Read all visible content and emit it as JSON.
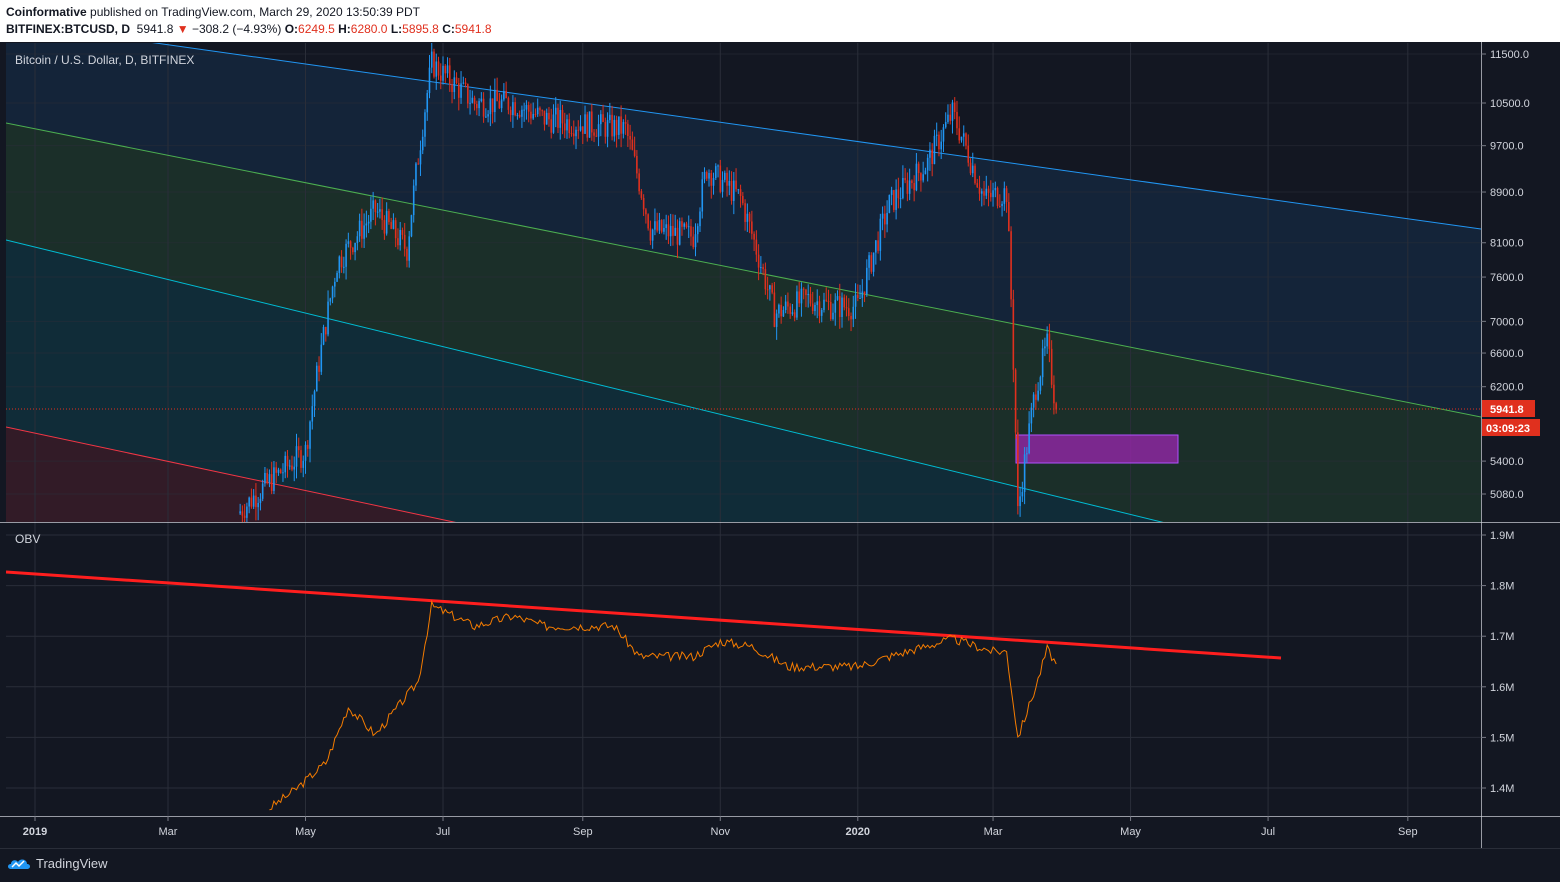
{
  "header": {
    "publisher": "Coinformative",
    "published_text": " published on TradingView.com, March 29, 2020 13:50:39 PDT",
    "symbol": "BITFINEX:BTCUSD, D",
    "last": "5941.8",
    "change_arrow": "▼",
    "change": "−308.2 (−4.93%)",
    "open_label": "O:",
    "open": "6249.5",
    "high_label": "H:",
    "high": "6280.0",
    "low_label": "L:",
    "low": "5895.8",
    "close_label": "C:",
    "close": "5941.8"
  },
  "main_pane": {
    "legend": "Bitcoin / U.S. Dollar, D, BITFINEX",
    "price_tag": "5941.8",
    "countdown_tag": "03:09:23",
    "price_tag_color": "#e0301e"
  },
  "obv_pane": {
    "legend": "OBV"
  },
  "footer": {
    "brand": "TradingView"
  },
  "colors": {
    "background": "#131722",
    "up_candle": "#2196f3",
    "down_candle": "#e0301e",
    "obv_line": "#f57c00",
    "trendline": "#ff1e1e",
    "channel_upper": "#2196f3",
    "channel_mid": "#4caf50",
    "channel_lower": "#00bcd4",
    "zone": "#9c27b0"
  },
  "chart_data": [
    {
      "type": "candlestick",
      "title": "Bitcoin / U.S. Dollar, D, BITFINEX",
      "x_tick_labels": [
        "2019",
        "Mar",
        "May",
        "Jul",
        "Sep",
        "Nov",
        "2020",
        "Mar",
        "May",
        "Jul",
        "Sep"
      ],
      "y_tick_labels": [
        "11500.0",
        "10500.0",
        "9700.0",
        "8900.0",
        "8100.0",
        "7600.0",
        "7000.0",
        "6600.0",
        "6200.0",
        "5400.0",
        "5080.0"
      ],
      "y_scale": "log",
      "ylim": [
        4800,
        11700
      ],
      "approx_closes": [
        {
          "date": "2019-04-01",
          "close": 4900
        },
        {
          "date": "2019-04-15",
          "close": 5200
        },
        {
          "date": "2019-05-01",
          "close": 5500
        },
        {
          "date": "2019-05-15",
          "close": 7800
        },
        {
          "date": "2019-06-01",
          "close": 8600
        },
        {
          "date": "2019-06-15",
          "close": 8000
        },
        {
          "date": "2019-06-26",
          "close": 11300
        },
        {
          "date": "2019-07-15",
          "close": 10500
        },
        {
          "date": "2019-08-01",
          "close": 10500
        },
        {
          "date": "2019-08-15",
          "close": 10200
        },
        {
          "date": "2019-09-01",
          "close": 10100
        },
        {
          "date": "2019-09-20",
          "close": 10000
        },
        {
          "date": "2019-10-01",
          "close": 8300
        },
        {
          "date": "2019-10-20",
          "close": 8200
        },
        {
          "date": "2019-10-26",
          "close": 9300
        },
        {
          "date": "2019-11-10",
          "close": 8800
        },
        {
          "date": "2019-11-25",
          "close": 7100
        },
        {
          "date": "2019-12-10",
          "close": 7300
        },
        {
          "date": "2019-12-20",
          "close": 7200
        },
        {
          "date": "2020-01-01",
          "close": 7200
        },
        {
          "date": "2020-01-15",
          "close": 8700
        },
        {
          "date": "2020-02-01",
          "close": 9400
        },
        {
          "date": "2020-02-12",
          "close": 10300
        },
        {
          "date": "2020-02-26",
          "close": 8800
        },
        {
          "date": "2020-03-07",
          "close": 8900
        },
        {
          "date": "2020-03-12",
          "close": 4900
        },
        {
          "date": "2020-03-20",
          "close": 6200
        },
        {
          "date": "2020-03-25",
          "close": 6700
        },
        {
          "date": "2020-03-29",
          "close": 5941.8
        }
      ],
      "last_close": 5941.8
    },
    {
      "type": "line",
      "title": "OBV",
      "y_tick_labels": [
        "1.9M",
        "1.8M",
        "1.7M",
        "1.6M",
        "1.5M",
        "1.4M"
      ],
      "ylim": [
        1.345,
        1.92
      ],
      "series": [
        {
          "values_M": [
            {
              "date": "2019-04-15",
              "v": 1.36
            },
            {
              "date": "2019-04-26",
              "v": 1.395
            },
            {
              "date": "2019-05-10",
              "v": 1.45
            },
            {
              "date": "2019-05-20",
              "v": 1.56
            },
            {
              "date": "2019-06-01",
              "v": 1.505
            },
            {
              "date": "2019-06-10",
              "v": 1.555
            },
            {
              "date": "2019-06-20",
              "v": 1.61
            },
            {
              "date": "2019-06-26",
              "v": 1.76
            },
            {
              "date": "2019-07-15",
              "v": 1.72
            },
            {
              "date": "2019-08-01",
              "v": 1.74
            },
            {
              "date": "2019-08-15",
              "v": 1.72
            },
            {
              "date": "2019-09-15",
              "v": 1.72
            },
            {
              "date": "2019-09-26",
              "v": 1.66
            },
            {
              "date": "2019-10-20",
              "v": 1.66
            },
            {
              "date": "2019-11-01",
              "v": 1.69
            },
            {
              "date": "2019-11-15",
              "v": 1.68
            },
            {
              "date": "2019-12-01",
              "v": 1.64
            },
            {
              "date": "2020-01-01",
              "v": 1.64
            },
            {
              "date": "2020-01-15",
              "v": 1.66
            },
            {
              "date": "2020-02-12",
              "v": 1.695
            },
            {
              "date": "2020-03-01",
              "v": 1.67
            },
            {
              "date": "2020-03-07",
              "v": 1.67
            },
            {
              "date": "2020-03-12",
              "v": 1.5
            },
            {
              "date": "2020-03-20",
              "v": 1.6
            },
            {
              "date": "2020-03-25",
              "v": 1.675
            },
            {
              "date": "2020-03-29",
              "v": 1.645
            }
          ]
        }
      ]
    }
  ]
}
